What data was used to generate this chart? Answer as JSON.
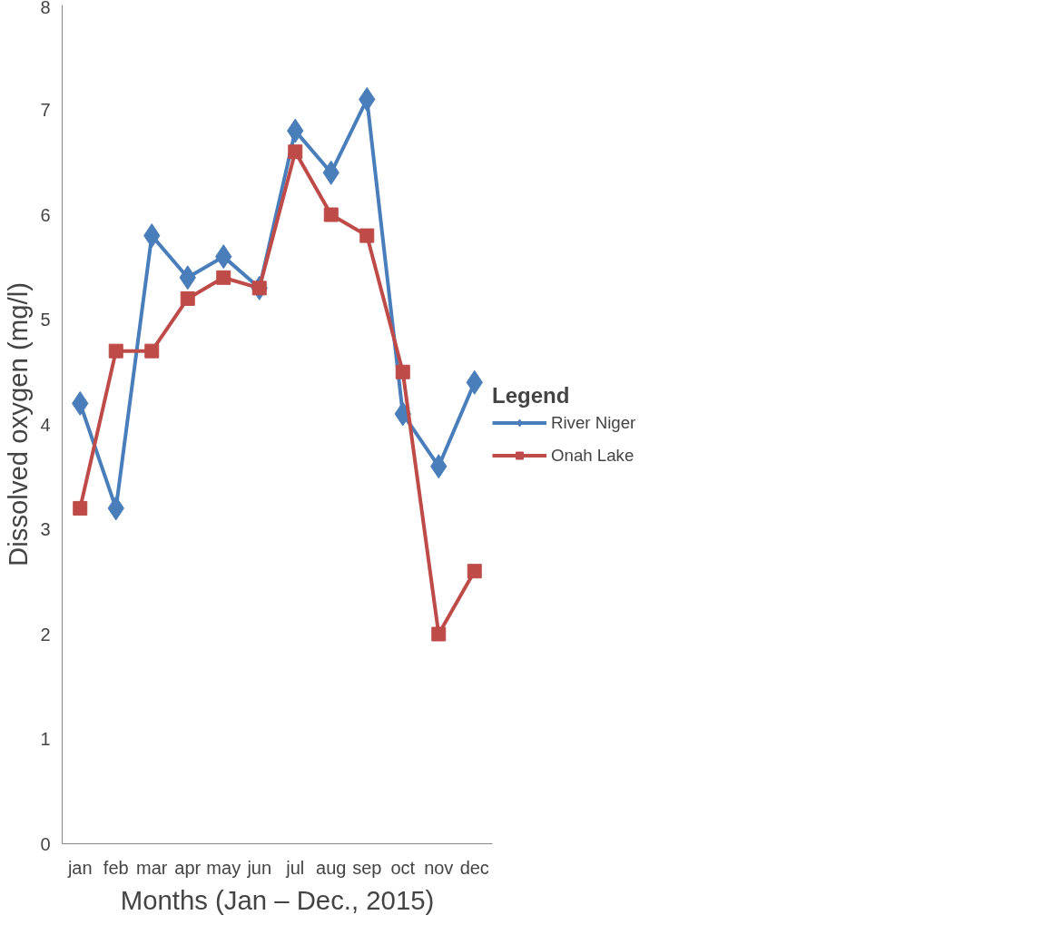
{
  "chart_data": {
    "type": "line",
    "xlabel": "Months (Jan – Dec., 2015)",
    "ylabel": "Dissolved oxygen (mg/l)",
    "legend_title": "Legend",
    "categories": [
      "jan",
      "feb",
      "mar",
      "apr",
      "may",
      "jun",
      "jul",
      "aug",
      "sep",
      "oct",
      "nov",
      "dec"
    ],
    "series": [
      {
        "name": "River Niger",
        "color": "#4a7ebb",
        "marker": "diamond",
        "values": [
          4.2,
          3.2,
          5.8,
          5.4,
          5.6,
          5.3,
          6.8,
          6.4,
          7.1,
          4.1,
          3.6,
          4.4
        ]
      },
      {
        "name": "Onah Lake",
        "color": "#be4b48",
        "marker": "square",
        "values": [
          3.2,
          4.7,
          4.7,
          5.2,
          5.4,
          5.3,
          6.6,
          6.0,
          5.8,
          4.5,
          2.0,
          2.6
        ]
      }
    ],
    "ylim": [
      0,
      8
    ],
    "yticks": [
      0,
      1,
      2,
      3,
      4,
      5,
      6,
      7,
      8
    ],
    "grid": false,
    "legend": "right",
    "line_style": "solid"
  }
}
